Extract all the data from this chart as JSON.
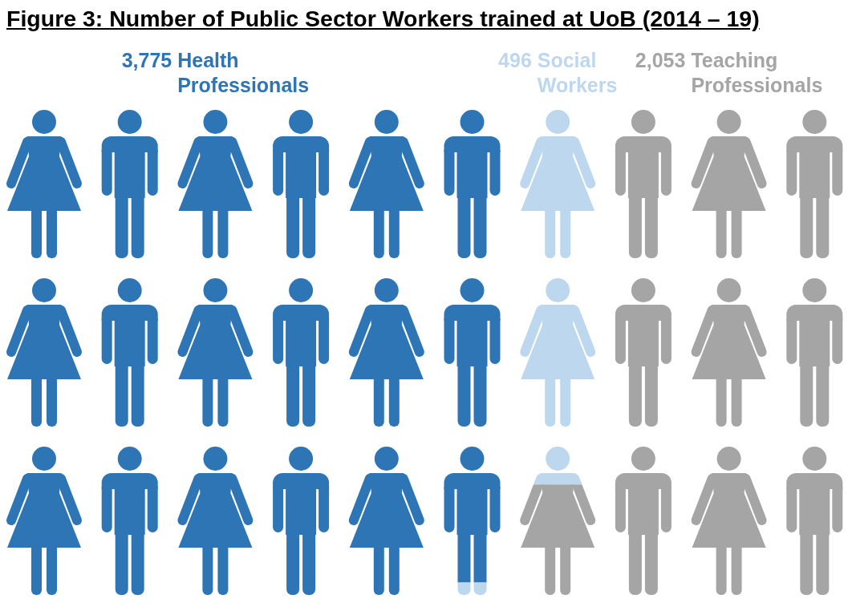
{
  "chart_data": {
    "type": "other",
    "title": "Figure 3: Number of Public Sector Workers trained at UoB (2014 – 19)",
    "categories": [
      "Health Professionals",
      "Social Workers",
      "Teaching Professionals"
    ],
    "values": [
      3775,
      496,
      2053
    ],
    "value_labels": [
      "3,775",
      "496",
      "2,053"
    ],
    "colors": [
      "#2e75b6",
      "#bdd7ee",
      "#a5a5a5"
    ]
  }
}
